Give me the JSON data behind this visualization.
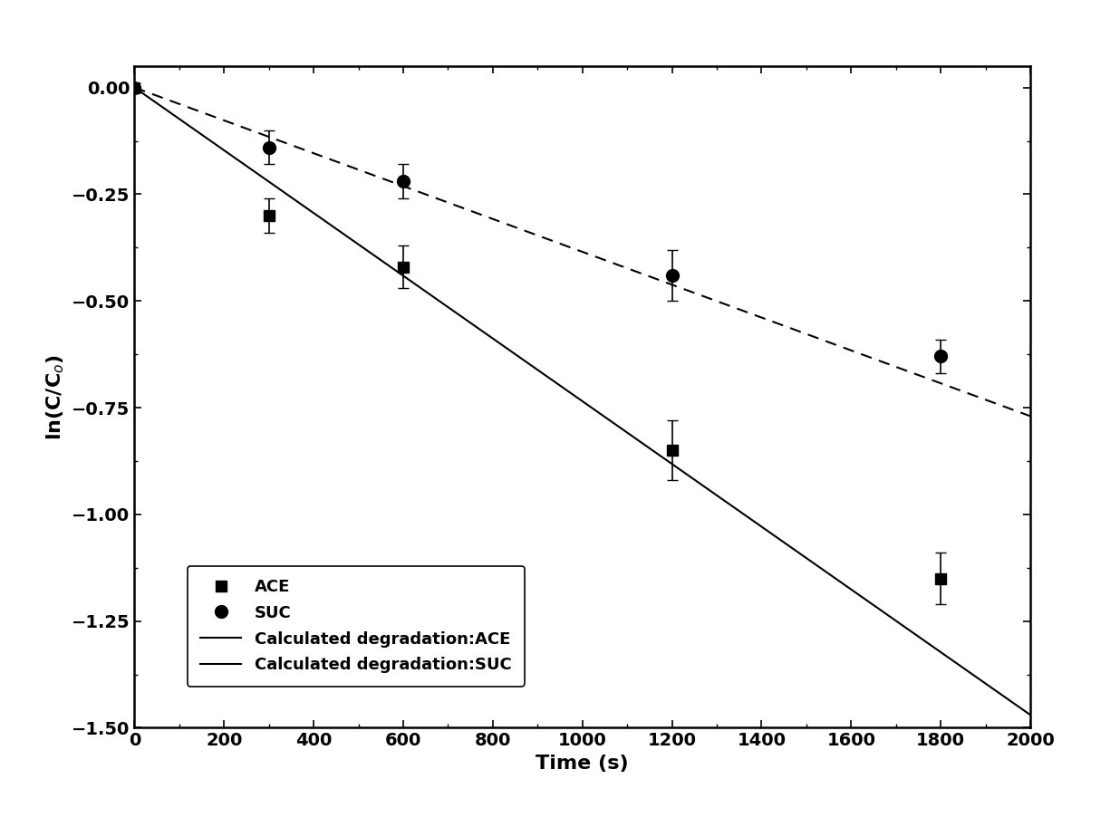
{
  "ACE_x": [
    0,
    300,
    600,
    1200,
    1800
  ],
  "ACE_y": [
    0.0,
    -0.3,
    -0.42,
    -0.85,
    -1.15
  ],
  "ACE_yerr": [
    0.0,
    0.04,
    0.05,
    0.07,
    0.06
  ],
  "SUC_x": [
    0,
    300,
    600,
    1200,
    1800
  ],
  "SUC_y": [
    0.0,
    -0.14,
    -0.22,
    -0.44,
    -0.63
  ],
  "SUC_yerr": [
    0.0,
    0.04,
    0.04,
    0.06,
    0.04
  ],
  "ACE_line_slope": -0.000735,
  "ACE_line_intercept": 0.0,
  "SUC_line_slope": -0.000385,
  "SUC_line_intercept": 0.0,
  "xlim": [
    0,
    2000
  ],
  "ylim": [
    -1.5,
    0.05
  ],
  "xlabel": "Time (s)",
  "ylabel": "ln(C/C$_o$)",
  "legend_ACE": "ACE",
  "legend_SUC": "SUC",
  "legend_line_ACE": "Calculated degradation:ACE",
  "legend_line_SUC": "Calculated degradation:SUC",
  "marker_color": "black",
  "line_color": "black",
  "background_color": "white",
  "label_fontsize": 16,
  "tick_fontsize": 14,
  "legend_fontsize": 13
}
